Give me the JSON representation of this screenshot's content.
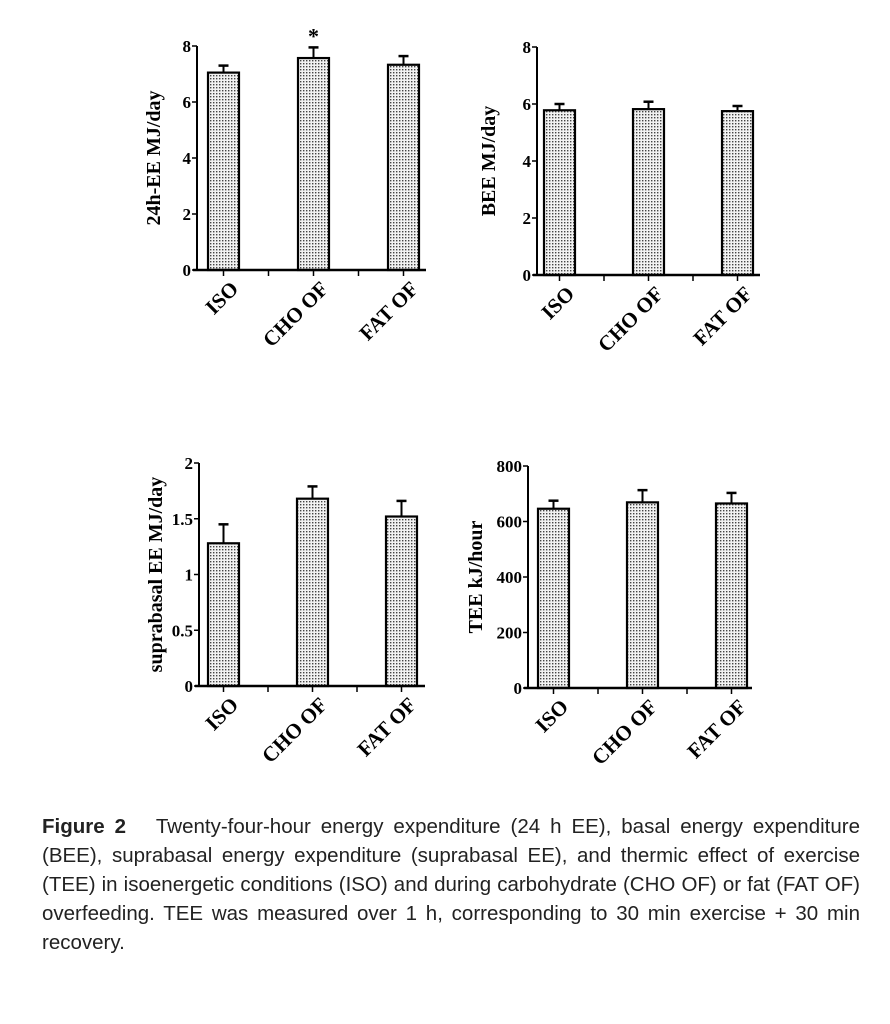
{
  "chart_data": [
    {
      "type": "bar",
      "ylabel": "24h-EE MJ/day",
      "categories": [
        "ISO",
        "CHO OF",
        "FAT OF"
      ],
      "values": [
        7.05,
        7.57,
        7.33
      ],
      "error_upper": [
        7.3,
        7.95,
        7.64
      ],
      "ylim": [
        0,
        8
      ],
      "yticks": [
        "0",
        "2",
        "4",
        "6",
        "8"
      ],
      "annotations": [
        {
          "category": "CHO OF",
          "text": "*"
        }
      ]
    },
    {
      "type": "bar",
      "ylabel": "BEE MJ/day",
      "categories": [
        "ISO",
        "CHO OF",
        "FAT OF"
      ],
      "values": [
        5.78,
        5.82,
        5.75
      ],
      "error_upper": [
        6.0,
        6.08,
        5.93
      ],
      "ylim": [
        0,
        8
      ],
      "yticks": [
        "0",
        "2",
        "4",
        "6",
        "8"
      ]
    },
    {
      "type": "bar",
      "ylabel": "suprabasal EE MJ/day",
      "categories": [
        "ISO",
        "CHO OF",
        "FAT OF"
      ],
      "values": [
        1.28,
        1.68,
        1.52
      ],
      "error_upper": [
        1.45,
        1.79,
        1.66
      ],
      "ylim": [
        0,
        2
      ],
      "yticks": [
        "0",
        "0.5",
        "1",
        "1.5",
        "2"
      ]
    },
    {
      "type": "bar",
      "ylabel": "TEE kJ/hour",
      "categories": [
        "ISO",
        "CHO OF",
        "FAT OF"
      ],
      "values": [
        646,
        669,
        665
      ],
      "error_upper": [
        675,
        713,
        703
      ],
      "ylim": [
        0,
        800
      ],
      "yticks": [
        "0",
        "200",
        "400",
        "600",
        "800"
      ]
    }
  ],
  "caption": {
    "label": "Figure 2",
    "text": "Twenty-four-hour energy expenditure (24 h EE), basal energy expenditure (BEE), suprabasal energy expenditure (suprabasal EE), and thermic effect of exercise (TEE) in isoenergetic conditions (ISO) and during carbohydrate (CHO OF) or fat (FAT OF) overfeeding. TEE was measured over 1 h, corresponding to 30 min exercise + 30 min recovery."
  }
}
